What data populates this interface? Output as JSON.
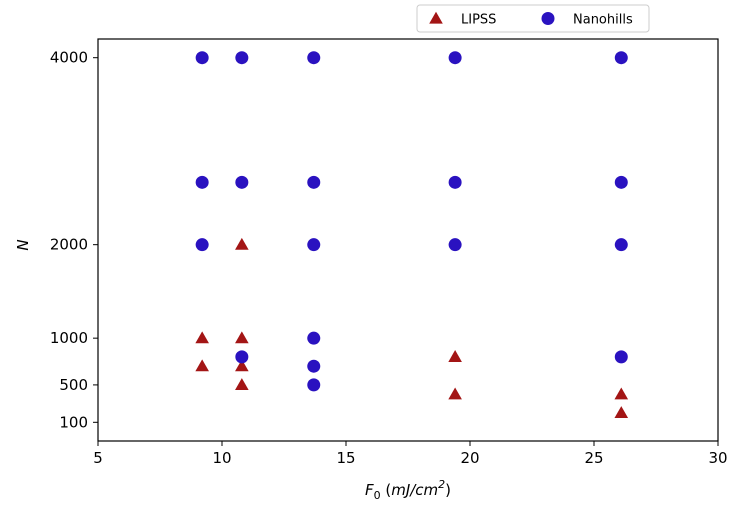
{
  "chart_data": {
    "type": "scatter",
    "xlabel": "F",
    "xlabel_sub": "0",
    "xlabel_units_prefix": " (",
    "xlabel_units_main": "mJ/cm",
    "xlabel_units_sup": "2",
    "xlabel_units_suffix": ")",
    "ylabel": "N",
    "xlim": [
      5,
      30
    ],
    "ylim": [
      -100,
      4200
    ],
    "x_ticks": [
      5,
      10,
      15,
      20,
      25,
      30
    ],
    "y_ticks": [
      100,
      500,
      1000,
      2000,
      4000
    ],
    "grid": false,
    "legend_position": "top-right-outside",
    "series": [
      {
        "name": "LIPSS",
        "marker": "triangle",
        "color": "#a31515",
        "points": [
          {
            "x": 9.2,
            "y": 1000
          },
          {
            "x": 9.2,
            "y": 700
          },
          {
            "x": 10.8,
            "y": 2000
          },
          {
            "x": 10.8,
            "y": 1000
          },
          {
            "x": 10.8,
            "y": 700
          },
          {
            "x": 10.8,
            "y": 500
          },
          {
            "x": 19.4,
            "y": 800
          },
          {
            "x": 19.4,
            "y": 400
          },
          {
            "x": 26.1,
            "y": 400
          },
          {
            "x": 26.1,
            "y": 200
          }
        ]
      },
      {
        "name": "Nanohills",
        "marker": "circle",
        "color": "#2a12c0",
        "points": [
          {
            "x": 9.2,
            "y": 4000
          },
          {
            "x": 9.2,
            "y": 2667
          },
          {
            "x": 9.2,
            "y": 2000
          },
          {
            "x": 10.8,
            "y": 4000
          },
          {
            "x": 10.8,
            "y": 2667
          },
          {
            "x": 10.8,
            "y": 800
          },
          {
            "x": 13.7,
            "y": 4000
          },
          {
            "x": 13.7,
            "y": 2667
          },
          {
            "x": 13.7,
            "y": 2000
          },
          {
            "x": 13.7,
            "y": 1000
          },
          {
            "x": 13.7,
            "y": 700
          },
          {
            "x": 13.7,
            "y": 500
          },
          {
            "x": 19.4,
            "y": 4000
          },
          {
            "x": 19.4,
            "y": 2667
          },
          {
            "x": 19.4,
            "y": 2000
          },
          {
            "x": 26.1,
            "y": 4000
          },
          {
            "x": 26.1,
            "y": 2667
          },
          {
            "x": 26.1,
            "y": 2000
          },
          {
            "x": 26.1,
            "y": 800
          }
        ]
      }
    ]
  }
}
